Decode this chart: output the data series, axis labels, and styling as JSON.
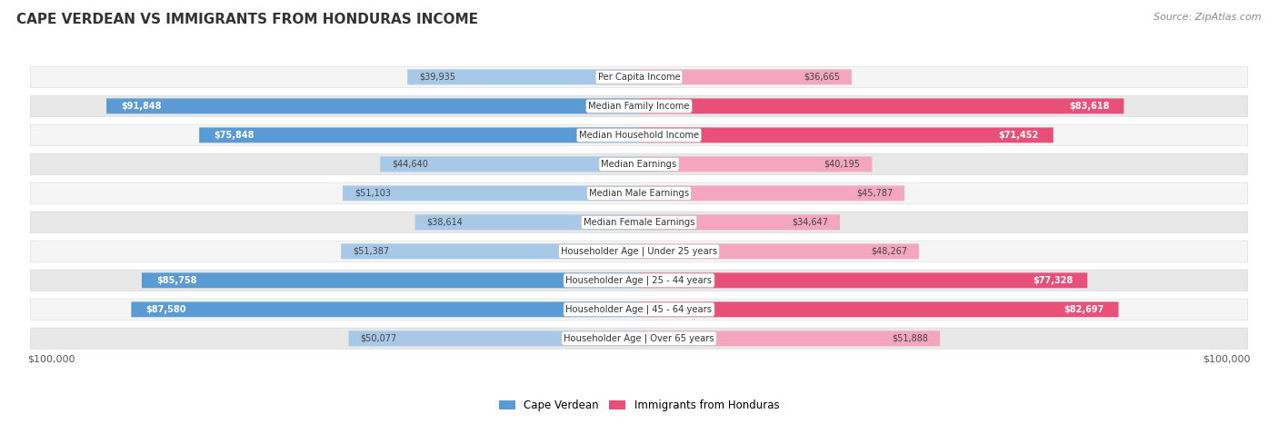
{
  "title": "CAPE VERDEAN VS IMMIGRANTS FROM HONDURAS INCOME",
  "source": "Source: ZipAtlas.com",
  "categories": [
    "Per Capita Income",
    "Median Family Income",
    "Median Household Income",
    "Median Earnings",
    "Median Male Earnings",
    "Median Female Earnings",
    "Householder Age | Under 25 years",
    "Householder Age | 25 - 44 years",
    "Householder Age | 45 - 64 years",
    "Householder Age | Over 65 years"
  ],
  "cape_verdean": [
    39935,
    91848,
    75848,
    44640,
    51103,
    38614,
    51387,
    85758,
    87580,
    50077
  ],
  "honduras": [
    36665,
    83618,
    71452,
    40195,
    45787,
    34647,
    48267,
    77328,
    82697,
    51888
  ],
  "cape_verdean_labels": [
    "$39,935",
    "$91,848",
    "$75,848",
    "$44,640",
    "$51,103",
    "$38,614",
    "$51,387",
    "$85,758",
    "$87,580",
    "$50,077"
  ],
  "honduras_labels": [
    "$36,665",
    "$83,618",
    "$71,452",
    "$40,195",
    "$45,787",
    "$34,647",
    "$48,267",
    "$77,328",
    "$82,697",
    "$51,888"
  ],
  "max_value": 100000,
  "color_cape_verdean_light": "#a8c8e8",
  "color_cape_verdean_dark": "#5b9bd5",
  "color_honduras_light": "#f4a6be",
  "color_honduras_dark": "#e8507a",
  "color_row_light": "#f5f5f5",
  "color_row_dark": "#e8e8e8",
  "background_color": "#ffffff",
  "threshold_large": 60000,
  "legend_cape_verdean": "Cape Verdean",
  "legend_honduras": "Immigrants from Honduras",
  "x_label_left": "$100,000",
  "x_label_right": "$100,000"
}
